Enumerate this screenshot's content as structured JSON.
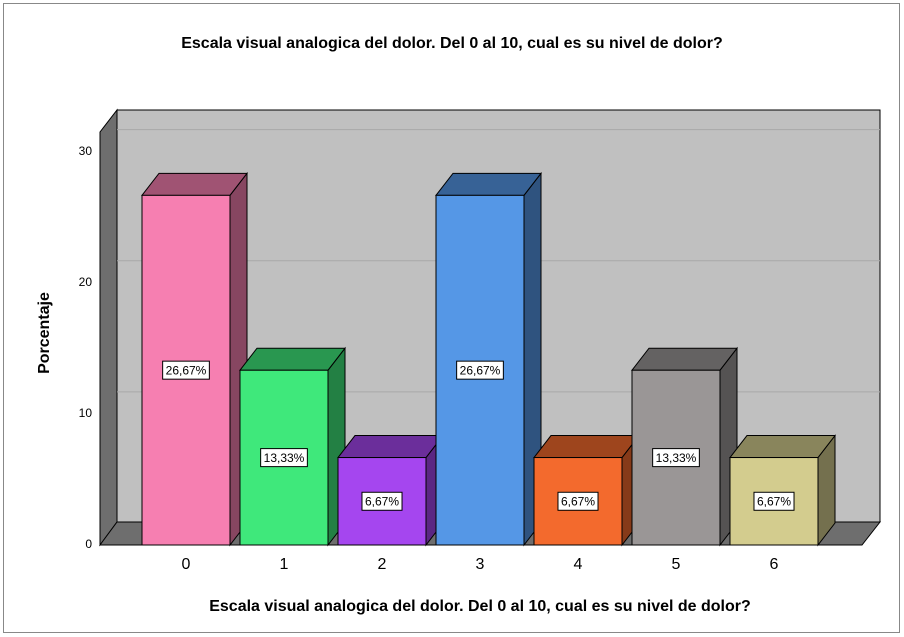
{
  "chart_data": {
    "type": "bar3d",
    "title": "Escala visual analogica del dolor. Del 0 al 10, cual es su nivel de dolor?",
    "xlabel": "Escala visual analogica del dolor. Del 0 al 10, cual es su nivel de dolor?",
    "ylabel": "Porcentaje",
    "categories": [
      "0",
      "1",
      "2",
      "3",
      "4",
      "5",
      "6"
    ],
    "values": [
      26.67,
      13.33,
      6.67,
      26.67,
      6.67,
      13.33,
      6.67
    ],
    "value_labels": [
      "26,67%",
      "13,33%",
      "6,67%",
      "26,67%",
      "6,67%",
      "13,33%",
      "6,67%"
    ],
    "colors": [
      "#f67fb1",
      "#3fe87b",
      "#a546ef",
      "#5597e6",
      "#f36a2d",
      "#9a9696",
      "#d3cc8e"
    ],
    "ylim": [
      0,
      31.5
    ],
    "yticks": [
      0,
      10,
      20,
      30
    ],
    "grid": true
  }
}
